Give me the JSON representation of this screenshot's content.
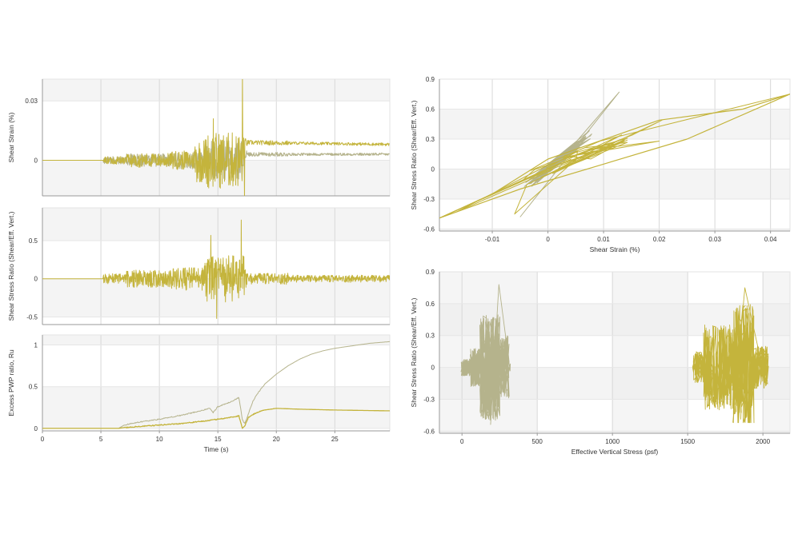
{
  "colors": {
    "series_a": "#c4b43c",
    "series_b": "#b5b38c",
    "band": "#f4f4f4",
    "grid": "#d8d8d8",
    "axis": "#9a9a9a"
  },
  "chart_data": [
    {
      "id": "strain_time",
      "type": "line",
      "ylabel": "Shear Strain (%)",
      "xlabel": "",
      "xlim": [
        0,
        29.7
      ],
      "ylim": [
        -0.018,
        0.041
      ],
      "xticks": [],
      "yticks": [
        {
          "v": 0.03,
          "label": "0.03"
        },
        {
          "v": 0,
          "label": "0"
        }
      ],
      "bands": "alt-y-0.03",
      "grid_x": [
        5,
        10,
        15,
        20,
        25
      ],
      "grid_y": [
        0.03,
        0
      ],
      "series": [
        {
          "color_key": "series_b",
          "values_desc": "hysteretic strain settling to ~0.003 after 17 s",
          "key_points": [
            [
              0,
              0
            ],
            [
              7,
              0
            ],
            [
              17.2,
              0.003
            ],
            [
              29.7,
              0.003
            ]
          ]
        },
        {
          "color_key": "series_a",
          "values_desc": "strain with peaks to ~0.043 at 17 s, residual ~0.009",
          "key_points": [
            [
              0,
              0
            ],
            [
              7,
              0
            ],
            [
              17.1,
              0.043
            ],
            [
              17.3,
              -0.019
            ],
            [
              29.7,
              0.009
            ]
          ]
        }
      ]
    },
    {
      "id": "stress_time",
      "type": "line",
      "ylabel": "Shear Stress Ratio (Shear/Eff. Vert.)",
      "xlabel": "",
      "xlim": [
        0,
        29.7
      ],
      "ylim": [
        -0.6,
        0.93
      ],
      "xticks": [],
      "yticks": [
        {
          "v": 0.5,
          "label": "0.5"
        },
        {
          "v": 0,
          "label": "0"
        },
        {
          "v": -0.5,
          "label": "-0.5"
        }
      ],
      "grid_x": [
        5,
        10,
        15,
        20,
        25
      ],
      "grid_y": [
        0.5,
        0,
        -0.5
      ],
      "series": [
        {
          "color_key": "series_a",
          "values_desc": "cyclic stress ratio, peaks ~0.78 near 17 s",
          "key_points": [
            [
              0,
              0
            ],
            [
              5.2,
              0
            ],
            [
              14.4,
              0.57
            ],
            [
              17.0,
              0.77
            ],
            [
              17.2,
              -0.45
            ],
            [
              29.7,
              0
            ]
          ]
        }
      ]
    },
    {
      "id": "ru_time",
      "type": "line",
      "ylabel": "Excess PWP ratio, Ru",
      "xlabel": "Time (s)",
      "xlim": [
        0,
        29.7
      ],
      "ylim": [
        -0.03,
        1.12
      ],
      "xticks": [
        {
          "v": 0,
          "label": "0"
        },
        {
          "v": 5,
          "label": "5"
        },
        {
          "v": 10,
          "label": "10"
        },
        {
          "v": 15,
          "label": "15"
        },
        {
          "v": 20,
          "label": "20"
        },
        {
          "v": 25,
          "label": "25"
        }
      ],
      "yticks": [
        {
          "v": 1,
          "label": "1"
        },
        {
          "v": 0.5,
          "label": "0.5"
        },
        {
          "v": 0,
          "label": "0"
        }
      ],
      "grid_x": [
        5,
        10,
        15,
        20,
        25
      ],
      "grid_y": [
        1,
        0.5,
        0
      ],
      "series": [
        {
          "color_key": "series_b",
          "name": "",
          "points": [
            [
              0,
              0
            ],
            [
              6.5,
              0
            ],
            [
              7.0,
              0.04
            ],
            [
              8,
              0.07
            ],
            [
              10,
              0.11
            ],
            [
              12,
              0.16
            ],
            [
              13.5,
              0.21
            ],
            [
              14.3,
              0.24
            ],
            [
              14.6,
              0.19
            ],
            [
              15,
              0.26
            ],
            [
              15.8,
              0.3
            ],
            [
              16.3,
              0.33
            ],
            [
              16.8,
              0.37
            ],
            [
              17.1,
              0.1
            ],
            [
              17.3,
              0.06
            ],
            [
              17.6,
              0.17
            ],
            [
              18,
              0.33
            ],
            [
              18.5,
              0.44
            ],
            [
              19,
              0.53
            ],
            [
              20,
              0.65
            ],
            [
              21,
              0.75
            ],
            [
              22,
              0.83
            ],
            [
              23,
              0.89
            ],
            [
              24,
              0.93
            ],
            [
              25,
              0.96
            ],
            [
              26,
              0.98
            ],
            [
              27,
              1.0
            ],
            [
              28,
              1.02
            ],
            [
              29.7,
              1.04
            ]
          ]
        },
        {
          "color_key": "series_a",
          "name": "",
          "points": [
            [
              0,
              0
            ],
            [
              6.5,
              0
            ],
            [
              7.0,
              0.01
            ],
            [
              8,
              0.02
            ],
            [
              10,
              0.04
            ],
            [
              12,
              0.06
            ],
            [
              14,
              0.09
            ],
            [
              15,
              0.11
            ],
            [
              16,
              0.13
            ],
            [
              16.8,
              0.15
            ],
            [
              17.1,
              0.0
            ],
            [
              17.3,
              0.03
            ],
            [
              17.6,
              0.13
            ],
            [
              18.3,
              0.19
            ],
            [
              19,
              0.22
            ],
            [
              20,
              0.24
            ],
            [
              22,
              0.23
            ],
            [
              25,
              0.22
            ],
            [
              29.7,
              0.21
            ]
          ]
        }
      ]
    },
    {
      "id": "stress_strain",
      "type": "scatter",
      "ylabel": "Shear Stress Ratio (Shear/Eff. Vert.)",
      "xlabel": "Shear Strain (%)",
      "xlim": [
        -0.0195,
        0.0435
      ],
      "ylim": [
        -0.62,
        0.9
      ],
      "xticks": [
        {
          "v": -0.01,
          "label": "-0.01"
        },
        {
          "v": 0,
          "label": "0"
        },
        {
          "v": 0.01,
          "label": "0.01"
        },
        {
          "v": 0.02,
          "label": "0.02"
        },
        {
          "v": 0.03,
          "label": "0.03"
        },
        {
          "v": 0.04,
          "label": "0.04"
        }
      ],
      "yticks": [
        {
          "v": 0.9,
          "label": "0.9"
        },
        {
          "v": 0.6,
          "label": "0.6"
        },
        {
          "v": 0.3,
          "label": "0.3"
        },
        {
          "v": 0,
          "label": "0"
        },
        {
          "v": -0.3,
          "label": "-0.3"
        },
        {
          "v": -0.6,
          "label": "-0.6"
        }
      ],
      "grid_x": [
        -0.01,
        0,
        0.01,
        0.02,
        0.03,
        0.04
      ],
      "grid_y": [
        0.9,
        0.6,
        0.3,
        0,
        -0.3,
        -0.6
      ],
      "series": [
        {
          "color_key": "series_b",
          "values_desc": "hysteresis loops, strain range -0.006 to 0.013",
          "loop_extent": {
            "x": [
              -0.0055,
              0.0128
            ],
            "y": [
              -0.55,
              0.77
            ]
          }
        },
        {
          "color_key": "series_a",
          "values_desc": "hysteresis loops, strain range -0.0195 to 0.0435",
          "loop_extent": {
            "x": [
              -0.0195,
              0.0435
            ],
            "y": [
              -0.49,
              0.75
            ]
          }
        }
      ]
    },
    {
      "id": "stress_path",
      "type": "scatter",
      "ylabel": "Shear Stress Ratio (Shear/Eff. Vert.)",
      "xlabel": "Effective Vertical Stress (psf)",
      "xlim": [
        -150,
        2180
      ],
      "ylim": [
        -0.62,
        0.9
      ],
      "xticks": [
        {
          "v": 0,
          "label": "0"
        },
        {
          "v": 500,
          "label": "500"
        },
        {
          "v": 1000,
          "label": "1000"
        },
        {
          "v": 1500,
          "label": "1500"
        },
        {
          "v": 2000,
          "label": "2000"
        }
      ],
      "yticks": [
        {
          "v": 0.9,
          "label": "0.9"
        },
        {
          "v": 0.6,
          "label": "0.6"
        },
        {
          "v": 0.3,
          "label": "0.3"
        },
        {
          "v": 0,
          "label": "0"
        },
        {
          "v": -0.3,
          "label": "-0.3"
        },
        {
          "v": -0.6,
          "label": "-0.6"
        }
      ],
      "grid_x": [
        0,
        500,
        1000,
        1500,
        2000
      ],
      "grid_y": [
        0.9,
        0.6,
        0.3,
        0,
        -0.3,
        -0.6
      ],
      "series": [
        {
          "color_key": "series_b",
          "values_desc": "stress path near 0–310 psf, ratio -0.54 to 0.78",
          "cloud_extent": {
            "x": [
              0,
              310
            ],
            "y": [
              -0.54,
              0.78
            ]
          }
        },
        {
          "color_key": "series_a",
          "values_desc": "stress path near 1540–2030 psf, ratio -0.52 to 0.75",
          "cloud_extent": {
            "x": [
              1540,
              2030
            ],
            "y": [
              -0.52,
              0.75
            ]
          }
        }
      ]
    }
  ]
}
